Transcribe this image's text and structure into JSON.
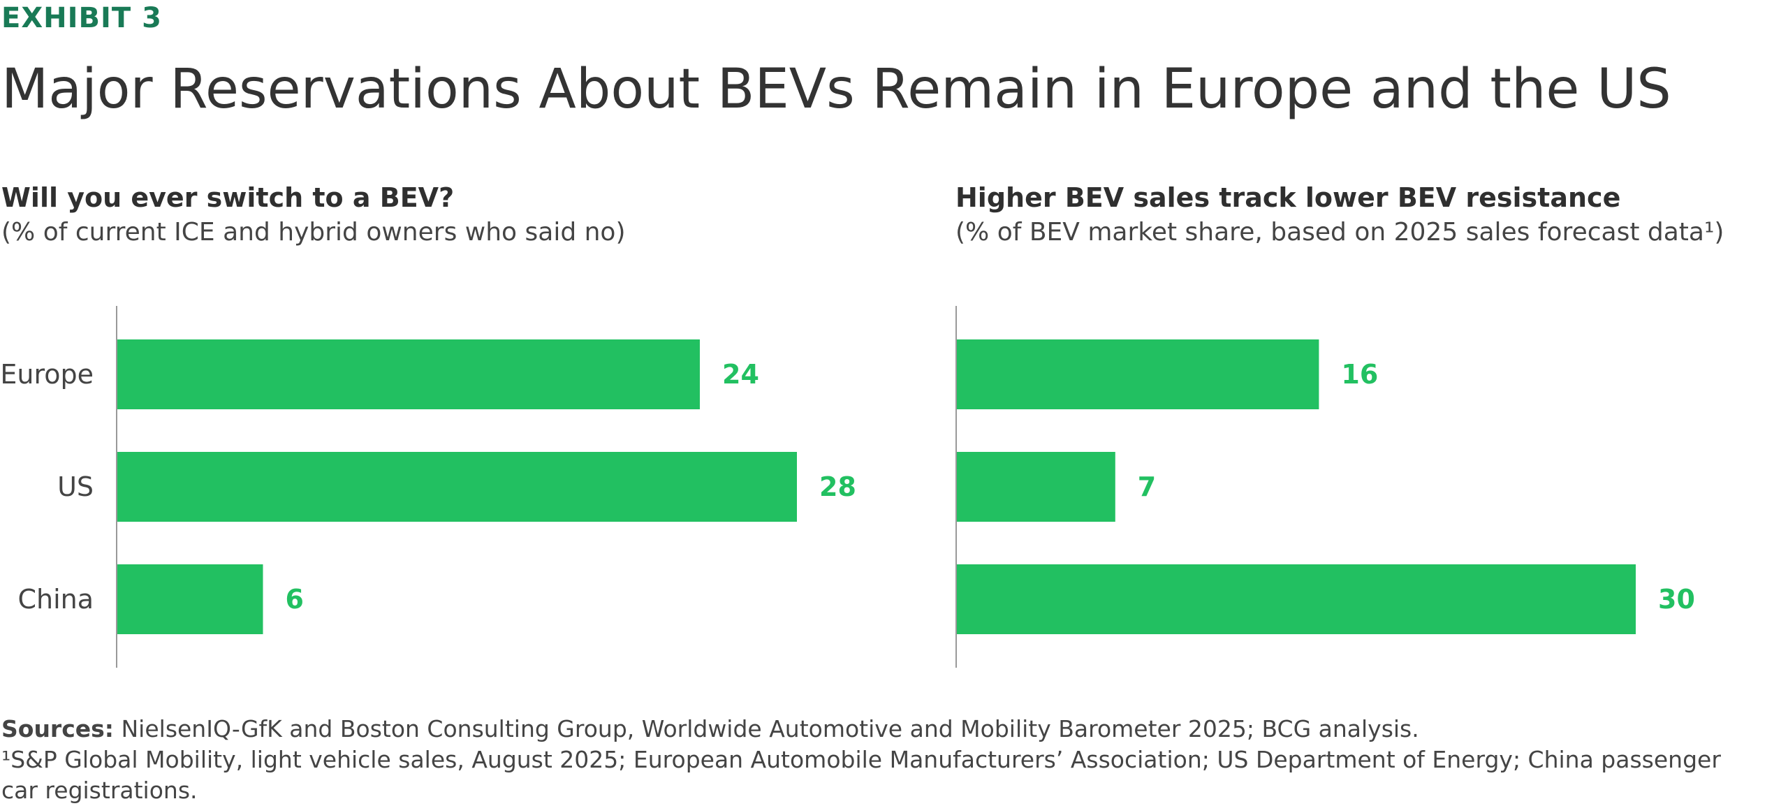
{
  "header": {
    "exhibit": "EXHIBIT 3",
    "title": "Major Reservations About BEVs Remain in Europe and the US"
  },
  "colors": {
    "bar": "#22c061",
    "label_value": "#22c061",
    "axis": "#999999",
    "exhibit": "#197a56"
  },
  "chart_data": [
    {
      "type": "bar",
      "orientation": "horizontal",
      "title": "Will you ever switch to a BEV?",
      "subtitle": "(% of current ICE and hybrid owners who said no)",
      "categories": [
        "Europe",
        "US",
        "China"
      ],
      "values": [
        24,
        28,
        6
      ],
      "xlim": [
        0,
        28
      ]
    },
    {
      "type": "bar",
      "orientation": "horizontal",
      "title": "Higher BEV sales track lower BEV resistance",
      "subtitle": "(% of BEV market share, based on 2025 sales forecast data¹)",
      "categories": [
        "Europe",
        "US",
        "China"
      ],
      "values": [
        16,
        7,
        30
      ],
      "xlim": [
        0,
        30
      ]
    }
  ],
  "footer": {
    "sources_label": "Sources:",
    "sources_text": " NielsenIQ-GfK and Boston Consulting Group, Worldwide Automotive and Mobility Barometer 2025; BCG analysis.",
    "note": "¹S&P Global Mobility, light vehicle sales, August 2025; European Automobile Manufacturers’ Association; US Department of Energy; China passenger car registrations."
  }
}
